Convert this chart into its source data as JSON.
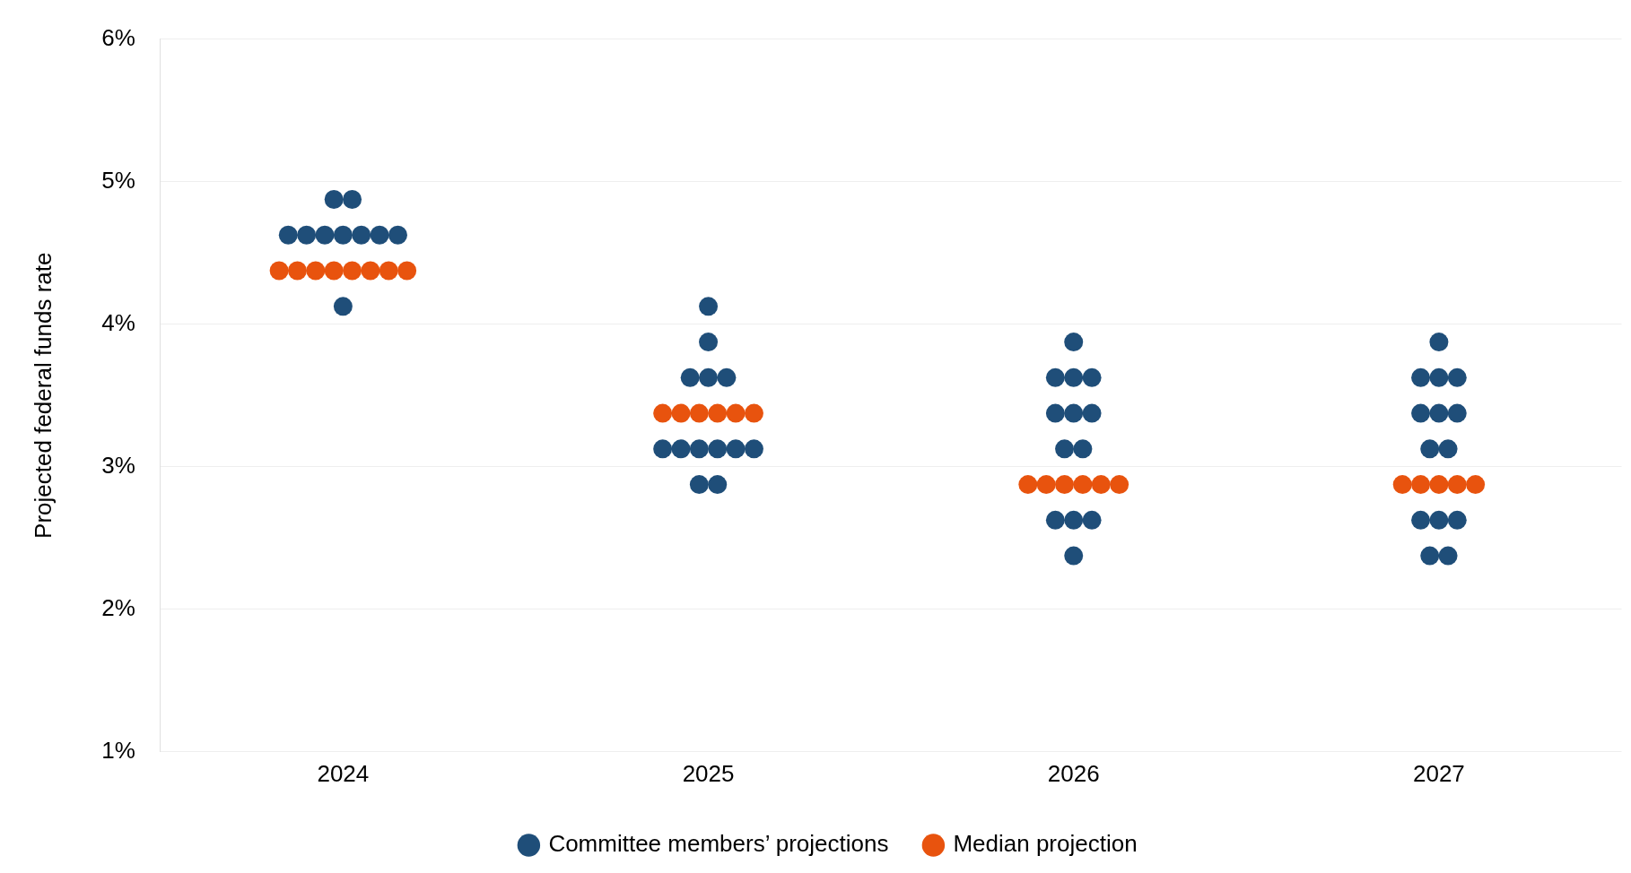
{
  "chart_data": {
    "type": "scatter",
    "ylabel": "Projected federal funds rate",
    "series": [
      {
        "name": "Committee members’ projections",
        "color": "#1f4e79",
        "x": [
          2023.975,
          2024.025,
          2023.85,
          2023.9,
          2023.95,
          2024,
          2024.05,
          2024.1,
          2024.15,
          2024,
          2025,
          2025,
          2024.95,
          2025,
          2025.05,
          2024.875,
          2024.925,
          2024.975,
          2025.025,
          2025.075,
          2025.125,
          2024.975,
          2025.025,
          2026,
          2025.95,
          2026,
          2026.05,
          2025.95,
          2026,
          2026.05,
          2025.975,
          2026.025,
          2025.95,
          2026,
          2026.05,
          2026,
          2027,
          2026.95,
          2027,
          2027.05,
          2026.95,
          2027,
          2027.05,
          2026.975,
          2027.025,
          2026.95,
          2027,
          2027.05,
          2026.975,
          2027.025
        ],
        "values": [
          4.875,
          4.875,
          4.625,
          4.625,
          4.625,
          4.625,
          4.625,
          4.625,
          4.625,
          4.125,
          4.125,
          3.875,
          3.625,
          3.625,
          3.625,
          3.125,
          3.125,
          3.125,
          3.125,
          3.125,
          3.125,
          2.875,
          2.875,
          3.875,
          3.625,
          3.625,
          3.625,
          3.375,
          3.375,
          3.375,
          3.125,
          3.125,
          2.625,
          2.625,
          2.625,
          2.375,
          3.875,
          3.625,
          3.625,
          3.625,
          3.375,
          3.375,
          3.375,
          3.125,
          3.125,
          2.625,
          2.625,
          2.625,
          2.375,
          2.375
        ]
      },
      {
        "name": "Median projection",
        "color": "#e8530e",
        "x": [
          2023.825,
          2023.875,
          2023.925,
          2023.975,
          2024.025,
          2024.075,
          2024.125,
          2024.175,
          2024.875,
          2024.925,
          2024.975,
          2025.025,
          2025.075,
          2025.125,
          2025.875,
          2025.925,
          2025.975,
          2026.025,
          2026.075,
          2026.125,
          2026.9,
          2026.95,
          2027,
          2027.05,
          2027.1
        ],
        "values": [
          4.375,
          4.375,
          4.375,
          4.375,
          4.375,
          4.375,
          4.375,
          4.375,
          3.375,
          3.375,
          3.375,
          3.375,
          3.375,
          3.375,
          2.875,
          2.875,
          2.875,
          2.875,
          2.875,
          2.875,
          2.875,
          2.875,
          2.875,
          2.875,
          2.875
        ]
      }
    ],
    "xlim": [
      2023.5,
      2027.5
    ],
    "xticks": [
      2024,
      2025,
      2026,
      2027
    ],
    "ylim": [
      1,
      6
    ],
    "yticks": [
      {
        "value": 1,
        "label": "1%"
      },
      {
        "value": 2,
        "label": "2%"
      },
      {
        "value": 3,
        "label": "3%"
      },
      {
        "value": 4,
        "label": "4%"
      },
      {
        "value": 5,
        "label": "5%"
      },
      {
        "value": 6,
        "label": "6%"
      }
    ],
    "grid": "y",
    "legend": "bottom",
    "marker": "circle"
  }
}
